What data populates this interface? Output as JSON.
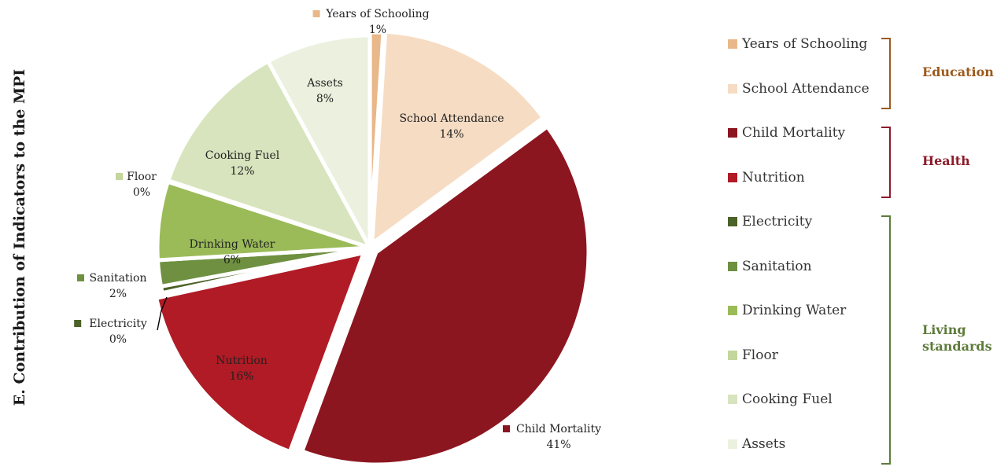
{
  "page_title": "E. Contribution of Indicators to the MPI",
  "chart_data": {
    "type": "pie",
    "title": "E. Contribution of Indicators to the MPI",
    "slices": [
      {
        "label": "Years of Schooling",
        "value": 1,
        "display": "1%",
        "color": "#E8B88A"
      },
      {
        "label": "School Attendance",
        "value": 14,
        "display": "14%",
        "color": "#F6DCC3"
      },
      {
        "label": "Child Mortality",
        "value": 41,
        "display": "41%",
        "color": "#8C1620"
      },
      {
        "label": "Nutrition",
        "value": 16,
        "display": "16%",
        "color": "#B01B25"
      },
      {
        "label": "Electricity",
        "value": 0.5,
        "display": "0%",
        "color": "#4B6228"
      },
      {
        "label": "Sanitation",
        "value": 2,
        "display": "2%",
        "color": "#6E9040"
      },
      {
        "label": "Drinking Water",
        "value": 6,
        "display": "6%",
        "color": "#9BBB59"
      },
      {
        "label": "Floor",
        "value": 0.1,
        "display": "0%",
        "color": "#C3D69B"
      },
      {
        "label": "Cooking Fuel",
        "value": 12,
        "display": "12%",
        "color": "#D7E4BD"
      },
      {
        "label": "Assets",
        "value": 8,
        "display": "8%",
        "color": "#EBF1DE"
      }
    ],
    "legend": [
      "Years of Schooling",
      "School Attendance",
      "Child Mortality",
      "Nutrition",
      "Electricity",
      "Sanitation",
      "Drinking Water",
      "Floor",
      "Cooking Fuel",
      "Assets"
    ],
    "legend_position": "right",
    "groups": [
      {
        "label_lines": [
          "Education"
        ],
        "color": "#9C5A1C",
        "members": [
          "Years of Schooling",
          "School Attendance"
        ]
      },
      {
        "label_lines": [
          "Health"
        ],
        "color": "#8C1C2A",
        "members": [
          "Child Mortality",
          "Nutrition"
        ]
      },
      {
        "label_lines": [
          "Living",
          "standards"
        ],
        "color": "#5E7B3A",
        "members": [
          "Electricity",
          "Sanitation",
          "Drinking Water",
          "Floor",
          "Cooking Fuel",
          "Assets"
        ]
      }
    ]
  }
}
